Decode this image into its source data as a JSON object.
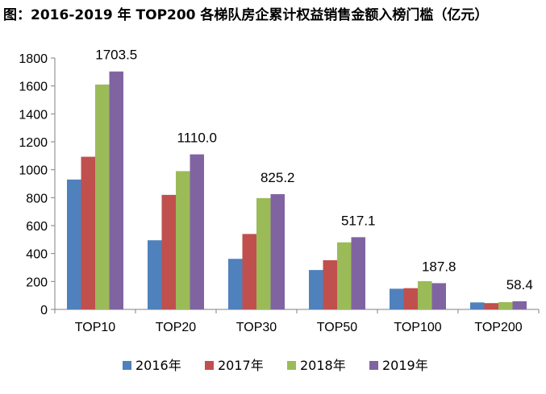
{
  "chart_data": {
    "type": "bar",
    "title": "图：2016-2019 年 TOP200 各梯队房企累计权益销售金额入榜门槛（亿元）",
    "categories": [
      "TOP10",
      "TOP20",
      "TOP30",
      "TOP50",
      "TOP100",
      "TOP200"
    ],
    "series": [
      {
        "name": "2016年",
        "color": "#4F81BD",
        "values": [
          930,
          495,
          362,
          282,
          148,
          50
        ]
      },
      {
        "name": "2017年",
        "color": "#C0504D",
        "values": [
          1093,
          820,
          540,
          352,
          152,
          45
        ]
      },
      {
        "name": "2018年",
        "color": "#9BBB59",
        "values": [
          1610,
          990,
          797,
          480,
          202,
          52
        ]
      },
      {
        "name": "2019年",
        "color": "#8064A2",
        "values": [
          1703.5,
          1110.0,
          825.2,
          517.1,
          187.8,
          58.4
        ]
      }
    ],
    "data_labels": [
      "1703.5",
      "1110.0",
      "825.2",
      "517.1",
      "187.8",
      "58.4"
    ],
    "data_label_series": "2019年",
    "ylim": [
      0,
      1800
    ],
    "yticks": [
      0,
      200,
      400,
      600,
      800,
      1000,
      1200,
      1400,
      1600,
      1800
    ],
    "xlabel": "",
    "ylabel": "",
    "grid": false,
    "legend_position": "bottom"
  }
}
